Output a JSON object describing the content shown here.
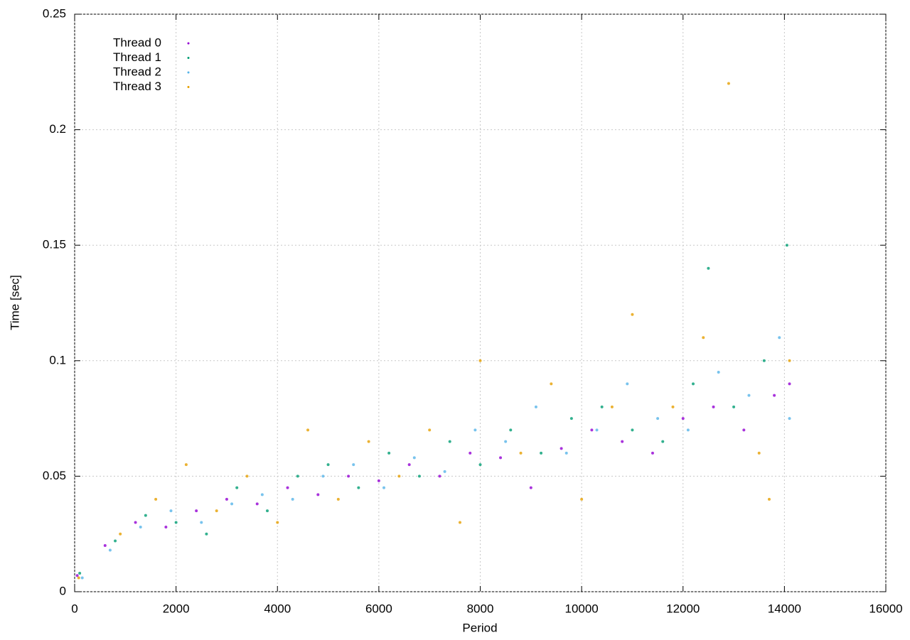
{
  "chart_data": {
    "type": "scatter",
    "xlabel": "Period",
    "ylabel": "Time [sec]",
    "xlim": [
      0,
      16000
    ],
    "xticks": [
      0,
      2000,
      4000,
      6000,
      8000,
      10000,
      12000,
      14000,
      16000
    ],
    "ylim": [
      0,
      0.25
    ],
    "yticks": [
      0,
      0.05,
      0.1,
      0.15,
      0.2,
      0.25
    ],
    "grid": true,
    "legend": "top-left",
    "series": [
      {
        "name": "Thread 0",
        "color": "#9400d3",
        "x": [
          50,
          600,
          1200,
          1800,
          2400,
          3000,
          3600,
          4200,
          4800,
          5400,
          6000,
          6600,
          7200,
          7800,
          8400,
          9000,
          9600,
          10200,
          10800,
          11400,
          12000,
          12600,
          13200,
          13800,
          14100
        ],
        "values": [
          0.007,
          0.02,
          0.03,
          0.028,
          0.035,
          0.04,
          0.038,
          0.045,
          0.042,
          0.05,
          0.048,
          0.055,
          0.05,
          0.06,
          0.058,
          0.045,
          0.062,
          0.07,
          0.065,
          0.06,
          0.075,
          0.08,
          0.07,
          0.085,
          0.09
        ]
      },
      {
        "name": "Thread 1",
        "color": "#009e73",
        "x": [
          100,
          800,
          1400,
          2000,
          2600,
          3200,
          3800,
          4400,
          5000,
          5600,
          6200,
          6800,
          7400,
          8000,
          8600,
          9200,
          9800,
          10400,
          11000,
          11600,
          12200,
          12500,
          13000,
          13600,
          14050
        ],
        "values": [
          0.008,
          0.022,
          0.033,
          0.03,
          0.025,
          0.045,
          0.035,
          0.05,
          0.055,
          0.045,
          0.06,
          0.05,
          0.065,
          0.055,
          0.07,
          0.06,
          0.075,
          0.08,
          0.07,
          0.065,
          0.09,
          0.14,
          0.08,
          0.1,
          0.15
        ]
      },
      {
        "name": "Thread 2",
        "color": "#56b4e9",
        "x": [
          150,
          700,
          1300,
          1900,
          2500,
          3100,
          3700,
          4300,
          4900,
          5500,
          6100,
          6700,
          7300,
          7900,
          8500,
          9100,
          9700,
          10300,
          10900,
          11500,
          12100,
          12700,
          13300,
          13900,
          14100
        ],
        "values": [
          0.006,
          0.018,
          0.028,
          0.035,
          0.03,
          0.038,
          0.042,
          0.04,
          0.05,
          0.055,
          0.045,
          0.058,
          0.052,
          0.07,
          0.065,
          0.08,
          0.06,
          0.07,
          0.09,
          0.075,
          0.07,
          0.095,
          0.085,
          0.11,
          0.075
        ]
      },
      {
        "name": "Thread 3",
        "color": "#e69f00",
        "x": [
          80,
          900,
          1600,
          2200,
          2800,
          3400,
          4000,
          4600,
          5200,
          5800,
          6400,
          7000,
          7600,
          8000,
          8800,
          9400,
          10000,
          10600,
          11000,
          11800,
          12400,
          12900,
          13500,
          13700,
          14100
        ],
        "values": [
          0.006,
          0.025,
          0.04,
          0.055,
          0.035,
          0.05,
          0.03,
          0.07,
          0.04,
          0.065,
          0.05,
          0.07,
          0.03,
          0.1,
          0.06,
          0.09,
          0.04,
          0.08,
          0.12,
          0.08,
          0.11,
          0.22,
          0.06,
          0.04,
          0.1
        ]
      }
    ]
  }
}
